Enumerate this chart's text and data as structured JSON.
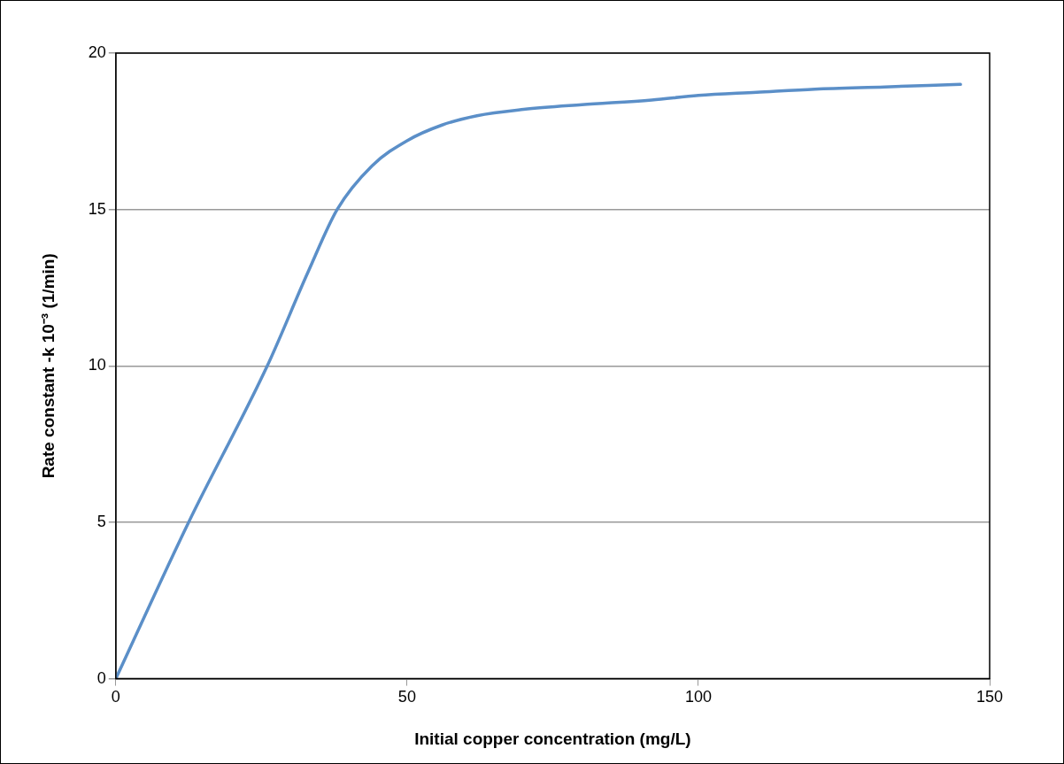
{
  "chart_data": {
    "type": "line",
    "xlabel": "Initial copper concentration (mg/L)",
    "ylabel": "Rate constant -k 10⁻³ (1/min)",
    "x": [
      0,
      12.5,
      26,
      33,
      38,
      44,
      50,
      56,
      62,
      70,
      80,
      92,
      100,
      110,
      120,
      132,
      145
    ],
    "series": [
      {
        "color": "#5b8fc8",
        "values": [
          0,
          5,
          10,
          13,
          15,
          16.4,
          17.2,
          17.7,
          18,
          18.2,
          18.35,
          18.5,
          18.65,
          18.75,
          18.85,
          18.92,
          19
        ]
      }
    ],
    "xlim": [
      0,
      150
    ],
    "xticks": [
      0,
      50,
      100,
      150
    ],
    "ylim": [
      0,
      20
    ],
    "yticks": [
      0,
      5,
      10,
      15,
      20
    ],
    "grid": "y",
    "legend": false,
    "marker": "none",
    "line_style": "solid"
  }
}
